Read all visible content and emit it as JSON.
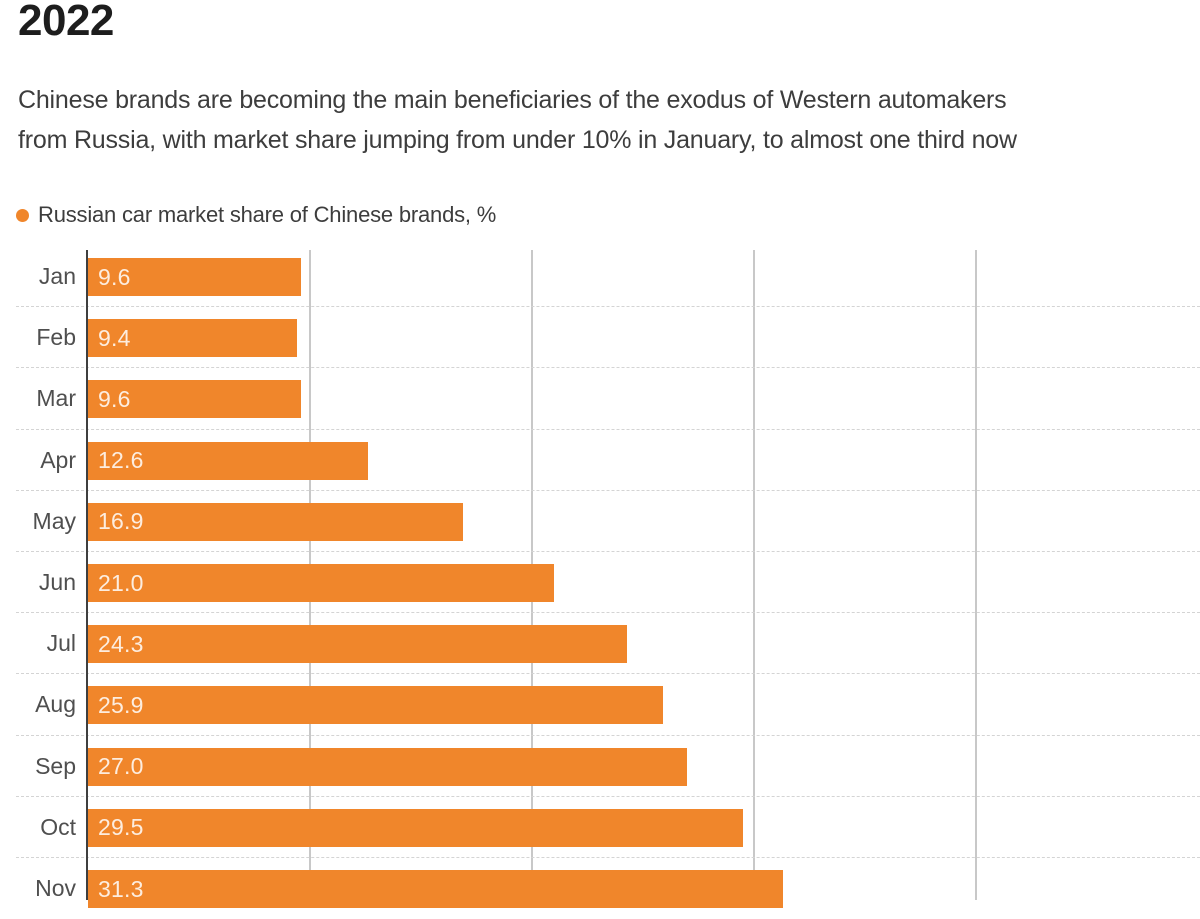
{
  "header": {
    "title": "2022",
    "subtitle_lines": [
      "Chinese brands are becoming the main beneficiaries of the exodus of Western automakers",
      "from Russia, with market share jumping from under 10% in January, to almost one third now"
    ]
  },
  "legend": {
    "label": "Russian car market share of Chinese brands, %"
  },
  "colors": {
    "bar": "#F0862B",
    "axis": "#3F3F3F",
    "gridline": "#C8C8C8",
    "separator": "#D4D4D4",
    "title_text": "#1D1D1D",
    "body_text": "#3D3D3D",
    "category_text": "#4F4F4F",
    "value_text": "rgba(255,255,255,0.85)"
  },
  "chart_data": {
    "type": "bar",
    "orientation": "horizontal",
    "title": "2022",
    "series_label": "Russian car market share of Chinese brands, %",
    "categories": [
      "Jan",
      "Feb",
      "Mar",
      "Apr",
      "May",
      "Jun",
      "Jul",
      "Aug",
      "Sep",
      "Oct",
      "Nov"
    ],
    "values": [
      9.6,
      9.4,
      9.6,
      12.6,
      16.9,
      21.0,
      24.3,
      25.9,
      27.0,
      29.5,
      31.3
    ],
    "value_labels": [
      "9.6",
      "9.4",
      "9.6",
      "12.6",
      "16.9",
      "21.0",
      "24.3",
      "25.9",
      "27.0",
      "29.5",
      "31.3"
    ],
    "xlabel": "",
    "ylabel": "",
    "xlim": [
      0,
      50
    ],
    "x_gridlines": [
      10,
      20,
      30,
      40
    ],
    "grid": true,
    "legend_position": "top-left",
    "bar_color": "#F0862B",
    "units": "%"
  }
}
